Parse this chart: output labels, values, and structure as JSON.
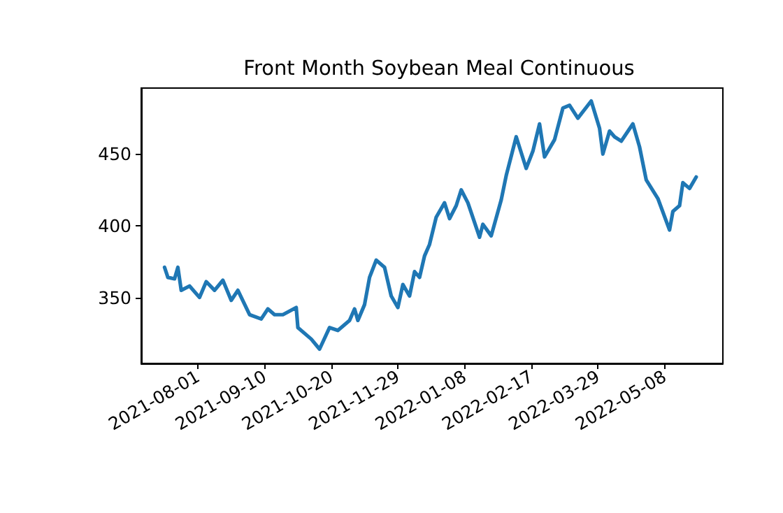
{
  "chart_data": {
    "type": "line",
    "title": "Front Month Soybean Meal Continuous",
    "x": [
      "2021-07-12",
      "2021-07-14",
      "2021-07-18",
      "2021-07-20",
      "2021-07-22",
      "2021-07-27",
      "2021-08-02",
      "2021-08-06",
      "2021-08-11",
      "2021-08-16",
      "2021-08-21",
      "2021-08-25",
      "2021-09-01",
      "2021-09-08",
      "2021-09-12",
      "2021-09-16",
      "2021-09-21",
      "2021-09-29",
      "2021-09-30",
      "2021-10-08",
      "2021-10-13",
      "2021-10-19",
      "2021-10-24",
      "2021-10-31",
      "2021-11-03",
      "2021-11-05",
      "2021-11-09",
      "2021-11-12",
      "2021-11-16",
      "2021-11-21",
      "2021-11-25",
      "2021-11-29",
      "2021-12-02",
      "2021-12-06",
      "2021-12-09",
      "2021-12-12",
      "2021-12-15",
      "2021-12-18",
      "2021-12-22",
      "2021-12-27",
      "2021-12-30",
      "2022-01-03",
      "2022-01-06",
      "2022-01-10",
      "2022-01-17",
      "2022-01-19",
      "2022-01-24",
      "2022-01-30",
      "2022-02-02",
      "2022-02-08",
      "2022-02-14",
      "2022-02-18",
      "2022-02-22",
      "2022-02-25",
      "2022-03-03",
      "2022-03-08",
      "2022-03-12",
      "2022-03-17",
      "2022-03-25",
      "2022-03-30",
      "2022-04-01",
      "2022-04-05",
      "2022-04-08",
      "2022-04-12",
      "2022-04-19",
      "2022-04-23",
      "2022-04-27",
      "2022-05-04",
      "2022-05-11",
      "2022-05-13",
      "2022-05-17",
      "2022-05-19",
      "2022-05-23",
      "2022-05-27"
    ],
    "series": [
      {
        "color": "#1f77b4",
        "values": [
          371,
          364,
          363,
          371,
          355,
          358,
          350,
          361,
          355,
          362,
          348,
          355,
          338,
          335,
          342,
          338,
          338,
          343,
          329,
          321,
          314,
          329,
          327,
          334,
          342,
          334,
          345,
          364,
          376,
          371,
          351,
          343,
          359,
          351,
          368,
          364,
          379,
          387,
          406,
          416,
          405,
          414,
          425,
          416,
          392,
          401,
          393,
          418,
          435,
          462,
          440,
          452,
          471,
          448,
          460,
          482,
          484,
          475,
          487,
          468,
          450,
          466,
          462,
          459,
          471,
          455,
          432,
          419,
          397,
          410,
          414,
          430,
          426,
          434
        ]
      }
    ],
    "xlim": [
      "2021-06-28",
      "2022-06-12"
    ],
    "xticks": [
      "2021-08-01",
      "2021-09-10",
      "2021-10-20",
      "2021-11-29",
      "2022-01-08",
      "2022-02-17",
      "2022-03-29",
      "2022-05-08"
    ],
    "ylim": [
      304,
      496
    ],
    "yticks": [
      350,
      400,
      450
    ],
    "grid": false,
    "marker": "none",
    "line_style": "solid"
  }
}
